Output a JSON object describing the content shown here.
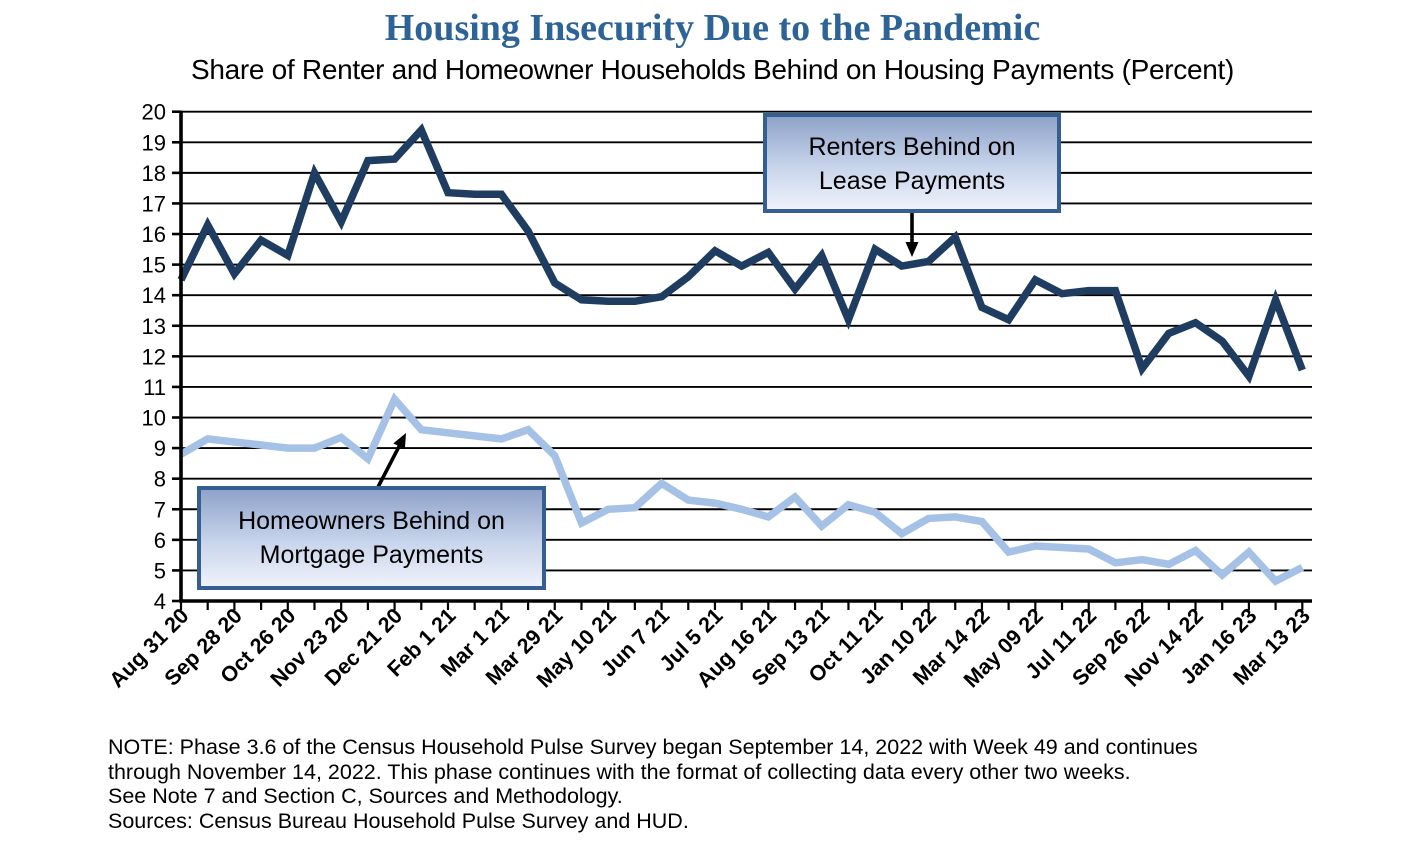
{
  "title": "Housing Insecurity Due to the Pandemic",
  "subtitle": "Share of Renter and Homeowner Households Behind on Housing Payments (Percent)",
  "annotations": {
    "renters": {
      "line1": "Renters Behind on",
      "line2": "Lease Payments"
    },
    "homeowners": {
      "line1": "Homeowners Behind on",
      "line2": "Mortgage Payments"
    }
  },
  "note": {
    "line1": "NOTE: Phase 3.6 of the Census Household Pulse Survey began September 14, 2022 with Week 49 and continues",
    "line2": "through November 14, 2022. This phase continues with the format of collecting data every other two weeks.",
    "line3": "See Note 7 and Section C, Sources and Methodology.",
    "line4": "Sources: Census Bureau Household Pulse Survey and HUD."
  },
  "colors": {
    "title_blue": "#2d6397",
    "renters_line": "#1f3c61",
    "homeowners_line": "#a6c1e6",
    "annotation_border": "#365f91",
    "grid_black": "#000000"
  },
  "chart_data": {
    "type": "line",
    "title": "Housing Insecurity Due to the Pandemic",
    "subtitle": "Share of Renter and Homeowner Households Behind on Housing Payments (Percent)",
    "ylabel": "Percent",
    "ylim": [
      4,
      20
    ],
    "y_tick_step": 1,
    "grid": "horizontal",
    "legend_position": "annotation-boxes-with-arrows",
    "points_per_label": 2,
    "x_tick_labels": [
      "Aug 31 20",
      "Sep 28 20",
      "Oct 26 20",
      "Nov 23 20",
      "Dec 21 20",
      "Feb 1 21",
      "Mar 1 21",
      "Mar 29 21",
      "May 10 21",
      "Jun 7 21",
      "Jul 5 21",
      "Aug 16 21",
      "Sep 13 21",
      "Oct 11 21",
      "Jan 10 22",
      "Mar 14 22",
      "May 09 22",
      "Jul 11 22",
      "Sep 26 22",
      "Nov 14 22",
      "Jan 16 23",
      "Mar 13 23"
    ],
    "series": [
      {
        "name": "Renters Behind on Lease Payments",
        "color": "#1f3c61",
        "values": [
          14.5,
          16.3,
          14.7,
          15.8,
          15.3,
          18.0,
          16.4,
          18.4,
          18.45,
          19.4,
          17.35,
          17.3,
          17.3,
          16.1,
          14.4,
          13.85,
          13.8,
          13.8,
          13.95,
          14.6,
          15.45,
          14.95,
          15.4,
          14.2,
          15.3,
          13.2,
          15.5,
          14.95,
          15.1,
          15.9,
          13.6,
          13.2,
          14.5,
          14.05,
          14.15,
          14.15,
          11.6,
          12.75,
          13.1,
          12.5,
          11.35,
          13.85,
          11.55
        ]
      },
      {
        "name": "Homeowners Behind on Mortgage Payments",
        "color": "#a6c1e6",
        "values": [
          8.8,
          9.3,
          9.2,
          9.1,
          9.0,
          9.0,
          9.35,
          8.65,
          10.6,
          9.6,
          9.5,
          9.4,
          9.3,
          9.6,
          8.75,
          6.55,
          7.0,
          7.05,
          7.85,
          7.3,
          7.2,
          7.0,
          6.75,
          7.4,
          6.45,
          7.15,
          6.9,
          6.2,
          6.7,
          6.75,
          6.6,
          5.6,
          5.8,
          5.75,
          5.7,
          5.25,
          5.35,
          5.2,
          5.65,
          4.85,
          5.6,
          4.65,
          5.1
        ]
      }
    ]
  }
}
